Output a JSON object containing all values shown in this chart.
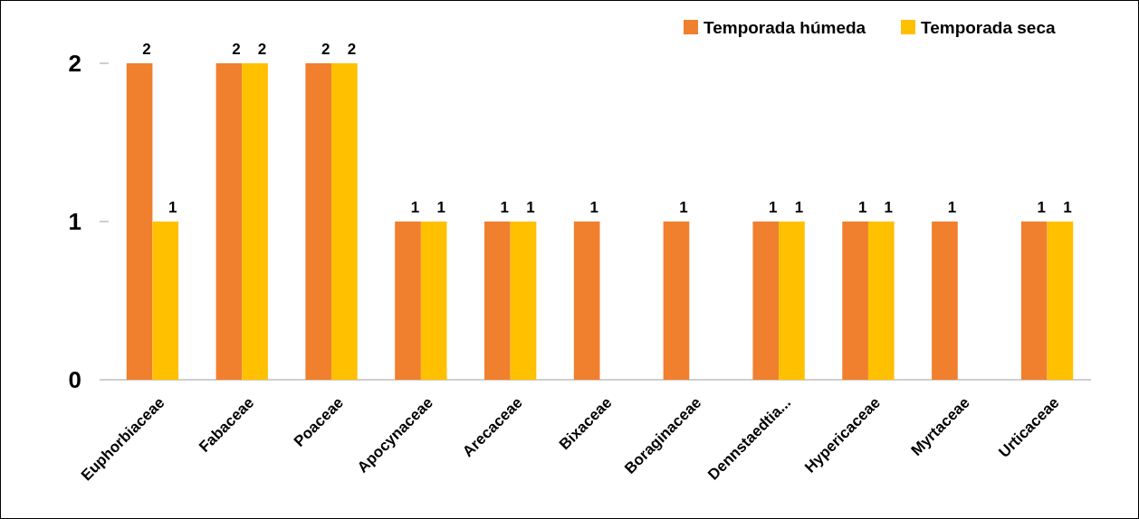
{
  "chart_data": {
    "type": "bar",
    "categories": [
      "Euphorbiaceae",
      "Fabaceae",
      "Poaceae",
      "Apocynaceae",
      "Arecaceae",
      "Bixaceae",
      "Boraginaceae",
      "Dennstaedtia...",
      "Hypericaceae",
      "Myrtaceae",
      "Urticaceae"
    ],
    "series": [
      {
        "name": "Temporada húmeda",
        "color": "#f07f2e",
        "values": [
          2,
          2,
          2,
          1,
          1,
          1,
          1,
          1,
          1,
          1,
          1
        ]
      },
      {
        "name": "Temporada seca",
        "color": "#ffc000",
        "values": [
          1,
          2,
          2,
          1,
          1,
          null,
          null,
          1,
          1,
          null,
          1
        ]
      }
    ],
    "ylim": [
      0,
      2
    ],
    "yticks": [
      0,
      1,
      2
    ],
    "data_labels": true,
    "legend": "top right",
    "grid": false
  }
}
